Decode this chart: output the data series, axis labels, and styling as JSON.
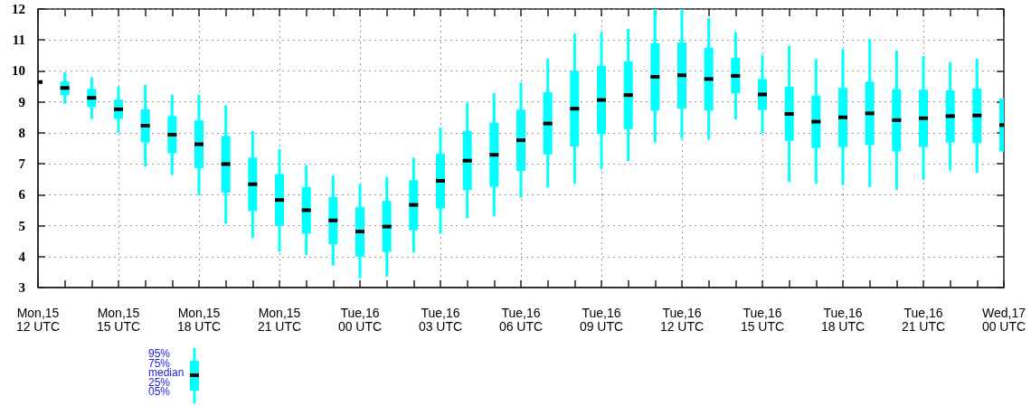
{
  "chart_data": {
    "type": "box",
    "categories": [
      "Mon,15\n12 UTC",
      null,
      null,
      "Mon,15\n15 UTC",
      null,
      null,
      "Mon,15\n18 UTC",
      null,
      null,
      "Mon,15\n21 UTC",
      null,
      null,
      "Tue,16\n00 UTC",
      null,
      null,
      "Tue,16\n03 UTC",
      null,
      null,
      "Tue,16\n06 UTC",
      null,
      null,
      "Tue,16\n09 UTC",
      null,
      null,
      "Tue,16\n12 UTC",
      null,
      null,
      "Tue,16\n15 UTC",
      null,
      null,
      "Tue,16\n18 UTC",
      null,
      null,
      "Tue,16\n21 UTC",
      null,
      null,
      "Wed,17\n00 UTC"
    ],
    "series": [
      {
        "color": "#00ffff",
        "boxes": [
          {
            "low": 9.58,
            "q1": 9.59,
            "median": 9.64,
            "q3": 9.7,
            "high": 9.7
          },
          {
            "low": 8.94,
            "q1": 9.22,
            "median": 9.45,
            "q3": 9.66,
            "high": 9.96
          },
          {
            "low": 8.45,
            "q1": 8.84,
            "median": 9.13,
            "q3": 9.42,
            "high": 9.8
          },
          {
            "low": 8.01,
            "q1": 8.45,
            "median": 8.76,
            "q3": 9.07,
            "high": 9.49
          },
          {
            "low": 6.91,
            "q1": 7.69,
            "median": 8.23,
            "q3": 8.76,
            "high": 9.55
          },
          {
            "low": 6.64,
            "q1": 7.34,
            "median": 7.94,
            "q3": 8.54,
            "high": 9.23
          },
          {
            "low": 5.99,
            "q1": 6.86,
            "median": 7.63,
            "q3": 8.4,
            "high": 9.23
          },
          {
            "low": 5.06,
            "q1": 6.07,
            "median": 6.99,
            "q3": 7.9,
            "high": 8.89
          },
          {
            "low": 4.6,
            "q1": 5.47,
            "median": 6.34,
            "q3": 7.2,
            "high": 8.05
          },
          {
            "low": 4.15,
            "q1": 4.99,
            "median": 5.83,
            "q3": 6.66,
            "high": 7.47
          },
          {
            "low": 4.05,
            "q1": 4.74,
            "median": 5.5,
            "q3": 6.25,
            "high": 6.95
          },
          {
            "low": 3.71,
            "q1": 4.4,
            "median": 5.17,
            "q3": 5.92,
            "high": 6.62
          },
          {
            "low": 3.3,
            "q1": 4.0,
            "median": 4.81,
            "q3": 5.6,
            "high": 6.34
          },
          {
            "low": 3.36,
            "q1": 4.15,
            "median": 4.97,
            "q3": 5.8,
            "high": 6.58
          },
          {
            "low": 4.13,
            "q1": 4.86,
            "median": 5.67,
            "q3": 6.47,
            "high": 7.2
          },
          {
            "low": 4.74,
            "q1": 5.56,
            "median": 6.45,
            "q3": 7.32,
            "high": 8.17
          },
          {
            "low": 5.24,
            "q1": 6.15,
            "median": 7.1,
            "q3": 8.05,
            "high": 8.97
          },
          {
            "low": 5.31,
            "q1": 6.26,
            "median": 7.29,
            "q3": 8.33,
            "high": 9.28
          },
          {
            "low": 5.9,
            "q1": 6.77,
            "median": 7.76,
            "q3": 8.75,
            "high": 9.63
          },
          {
            "low": 6.23,
            "q1": 7.3,
            "median": 8.3,
            "q3": 9.31,
            "high": 10.39
          },
          {
            "low": 6.35,
            "q1": 7.56,
            "median": 8.78,
            "q3": 10.0,
            "high": 11.21
          },
          {
            "low": 6.83,
            "q1": 7.96,
            "median": 9.06,
            "q3": 10.16,
            "high": 11.25
          },
          {
            "low": 7.09,
            "q1": 8.12,
            "median": 9.22,
            "q3": 10.31,
            "high": 11.36
          },
          {
            "low": 7.69,
            "q1": 8.72,
            "median": 9.81,
            "q3": 10.9,
            "high": 12
          },
          {
            "low": 7.81,
            "q1": 8.79,
            "median": 9.86,
            "q3": 10.92,
            "high": 12
          },
          {
            "low": 7.78,
            "q1": 8.72,
            "median": 9.74,
            "q3": 10.75,
            "high": 11.71
          },
          {
            "low": 8.43,
            "q1": 9.28,
            "median": 9.84,
            "q3": 10.42,
            "high": 11.26
          },
          {
            "low": 7.99,
            "q1": 8.74,
            "median": 9.24,
            "q3": 9.74,
            "high": 10.51
          },
          {
            "low": 6.41,
            "q1": 7.74,
            "median": 8.61,
            "q3": 9.49,
            "high": 10.82
          },
          {
            "low": 6.35,
            "q1": 7.51,
            "median": 8.36,
            "q3": 9.2,
            "high": 10.38
          },
          {
            "low": 6.31,
            "q1": 7.54,
            "median": 8.5,
            "q3": 9.45,
            "high": 10.7
          },
          {
            "low": 6.25,
            "q1": 7.6,
            "median": 8.63,
            "q3": 9.65,
            "high": 11.03
          },
          {
            "low": 6.16,
            "q1": 7.4,
            "median": 8.41,
            "q3": 9.41,
            "high": 10.66
          },
          {
            "low": 6.48,
            "q1": 7.54,
            "median": 8.47,
            "q3": 9.39,
            "high": 10.48
          },
          {
            "low": 6.78,
            "q1": 7.69,
            "median": 8.54,
            "q3": 9.37,
            "high": 10.28
          },
          {
            "low": 6.71,
            "q1": 7.67,
            "median": 8.56,
            "q3": 9.43,
            "high": 10.39
          },
          {
            "low": 7.4,
            "q1": 7.4,
            "median": 8.25,
            "q3": 9.11,
            "high": 9.11
          }
        ]
      }
    ],
    "ylim": [
      3,
      12
    ],
    "yticks": [
      3,
      4,
      5,
      6,
      7,
      8,
      9,
      10,
      11,
      12
    ],
    "grid": true,
    "annotations": [
      "95%",
      "75%",
      "median",
      "25%",
      "05%"
    ]
  }
}
